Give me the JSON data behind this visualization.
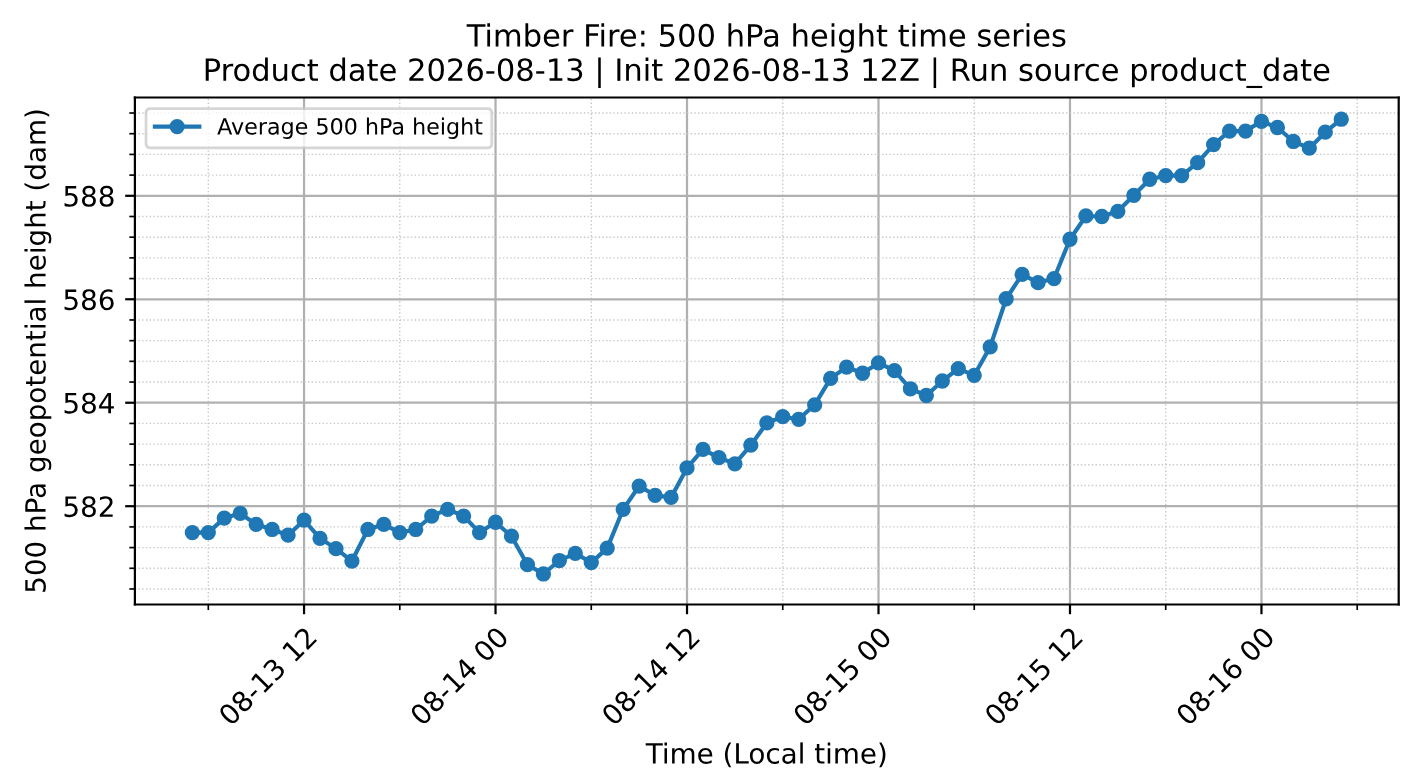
{
  "chart_data": {
    "type": "line",
    "title": "Timber Fire: 500 hPa height time series\nProduct date 2026-08-13 | Init 2026-08-13 12Z | Run source product_date",
    "xlabel": "Time (Local time)",
    "ylabel": "500 hPa geopotential height (dam)",
    "x": [
      "2026-08-13T05:00",
      "2026-08-13T06:00",
      "2026-08-13T07:00",
      "2026-08-13T08:00",
      "2026-08-13T09:00",
      "2026-08-13T10:00",
      "2026-08-13T11:00",
      "2026-08-13T12:00",
      "2026-08-13T13:00",
      "2026-08-13T14:00",
      "2026-08-13T15:00",
      "2026-08-13T16:00",
      "2026-08-13T17:00",
      "2026-08-13T18:00",
      "2026-08-13T19:00",
      "2026-08-13T20:00",
      "2026-08-13T21:00",
      "2026-08-13T22:00",
      "2026-08-13T23:00",
      "2026-08-14T00:00",
      "2026-08-14T01:00",
      "2026-08-14T02:00",
      "2026-08-14T03:00",
      "2026-08-14T04:00",
      "2026-08-14T05:00",
      "2026-08-14T06:00",
      "2026-08-14T07:00",
      "2026-08-14T08:00",
      "2026-08-14T09:00",
      "2026-08-14T10:00",
      "2026-08-14T11:00",
      "2026-08-14T12:00",
      "2026-08-14T13:00",
      "2026-08-14T14:00",
      "2026-08-14T15:00",
      "2026-08-14T16:00",
      "2026-08-14T17:00",
      "2026-08-14T18:00",
      "2026-08-14T19:00",
      "2026-08-14T20:00",
      "2026-08-14T21:00",
      "2026-08-14T22:00",
      "2026-08-14T23:00",
      "2026-08-15T00:00",
      "2026-08-15T01:00",
      "2026-08-15T02:00",
      "2026-08-15T03:00",
      "2026-08-15T04:00",
      "2026-08-15T05:00",
      "2026-08-15T06:00",
      "2026-08-15T07:00",
      "2026-08-15T08:00",
      "2026-08-15T09:00",
      "2026-08-15T10:00",
      "2026-08-15T11:00",
      "2026-08-15T12:00",
      "2026-08-15T13:00",
      "2026-08-15T14:00",
      "2026-08-15T15:00",
      "2026-08-15T16:00",
      "2026-08-15T17:00",
      "2026-08-15T18:00",
      "2026-08-15T19:00",
      "2026-08-15T20:00",
      "2026-08-15T21:00",
      "2026-08-15T22:00",
      "2026-08-15T23:00",
      "2026-08-16T00:00",
      "2026-08-16T01:00",
      "2026-08-16T02:00",
      "2026-08-16T03:00",
      "2026-08-16T04:00",
      "2026-08-16T05:00"
    ],
    "series": [
      {
        "name": "Average 500 hPa height",
        "color": "#1f77b4",
        "values": [
          581.49,
          581.49,
          581.77,
          581.86,
          581.65,
          581.55,
          581.44,
          581.73,
          581.38,
          581.18,
          580.94,
          581.55,
          581.65,
          581.49,
          581.55,
          581.81,
          581.94,
          581.81,
          581.49,
          581.69,
          581.42,
          580.87,
          580.69,
          580.95,
          581.09,
          580.91,
          581.19,
          581.94,
          582.39,
          582.21,
          582.17,
          582.74,
          583.1,
          582.94,
          582.82,
          583.18,
          583.61,
          583.73,
          583.68,
          583.96,
          584.47,
          584.69,
          584.57,
          584.77,
          584.62,
          584.27,
          584.14,
          584.42,
          584.66,
          584.53,
          585.08,
          586.01,
          586.48,
          586.32,
          586.4,
          587.16,
          587.61,
          587.6,
          587.7,
          588.01,
          588.32,
          588.39,
          588.39,
          588.64,
          588.99,
          589.25,
          589.25,
          589.44,
          589.32,
          589.05,
          588.92,
          589.23,
          589.48
        ]
      }
    ],
    "xlim": [
      "2026-08-13T01:24",
      "2026-08-16T08:36"
    ],
    "xticks": [
      {
        "value": "2026-08-13T06:00",
        "label": null
      },
      {
        "value": "2026-08-13T12:00",
        "label": "08-13 12"
      },
      {
        "value": "2026-08-13T18:00",
        "label": null
      },
      {
        "value": "2026-08-14T00:00",
        "label": "08-14 00"
      },
      {
        "value": "2026-08-14T06:00",
        "label": null
      },
      {
        "value": "2026-08-14T12:00",
        "label": "08-14 12"
      },
      {
        "value": "2026-08-14T18:00",
        "label": null
      },
      {
        "value": "2026-08-15T00:00",
        "label": "08-15 00"
      },
      {
        "value": "2026-08-15T06:00",
        "label": null
      },
      {
        "value": "2026-08-15T12:00",
        "label": "08-15 12"
      },
      {
        "value": "2026-08-15T18:00",
        "label": null
      },
      {
        "value": "2026-08-16T00:00",
        "label": "08-16 00"
      },
      {
        "value": "2026-08-16T06:00",
        "label": null
      }
    ],
    "ylim": [
      580.1,
      589.9
    ],
    "yticks": [
      {
        "value": 580.4,
        "label": null
      },
      {
        "value": 580.8,
        "label": null
      },
      {
        "value": 581.2,
        "label": null
      },
      {
        "value": 581.6,
        "label": null
      },
      582,
      {
        "value": 582.4,
        "label": null
      },
      {
        "value": 582.8,
        "label": null
      },
      {
        "value": 583.2,
        "label": null
      },
      {
        "value": 583.6,
        "label": null
      },
      584,
      {
        "value": 584.4,
        "label": null
      },
      {
        "value": 584.8,
        "label": null
      },
      {
        "value": 585.2,
        "label": null
      },
      {
        "value": 585.6,
        "label": null
      },
      586,
      {
        "value": 586.4,
        "label": null
      },
      {
        "value": 586.8,
        "label": null
      },
      {
        "value": 587.2,
        "label": null
      },
      {
        "value": 587.6,
        "label": null
      },
      588,
      {
        "value": 588.4,
        "label": null
      },
      {
        "value": 588.8,
        "label": null
      },
      {
        "value": 589.2,
        "label": null
      },
      {
        "value": 589.6,
        "label": null
      }
    ],
    "grid": true,
    "legend": "top left",
    "marker": "circle",
    "line_style": "solid"
  }
}
